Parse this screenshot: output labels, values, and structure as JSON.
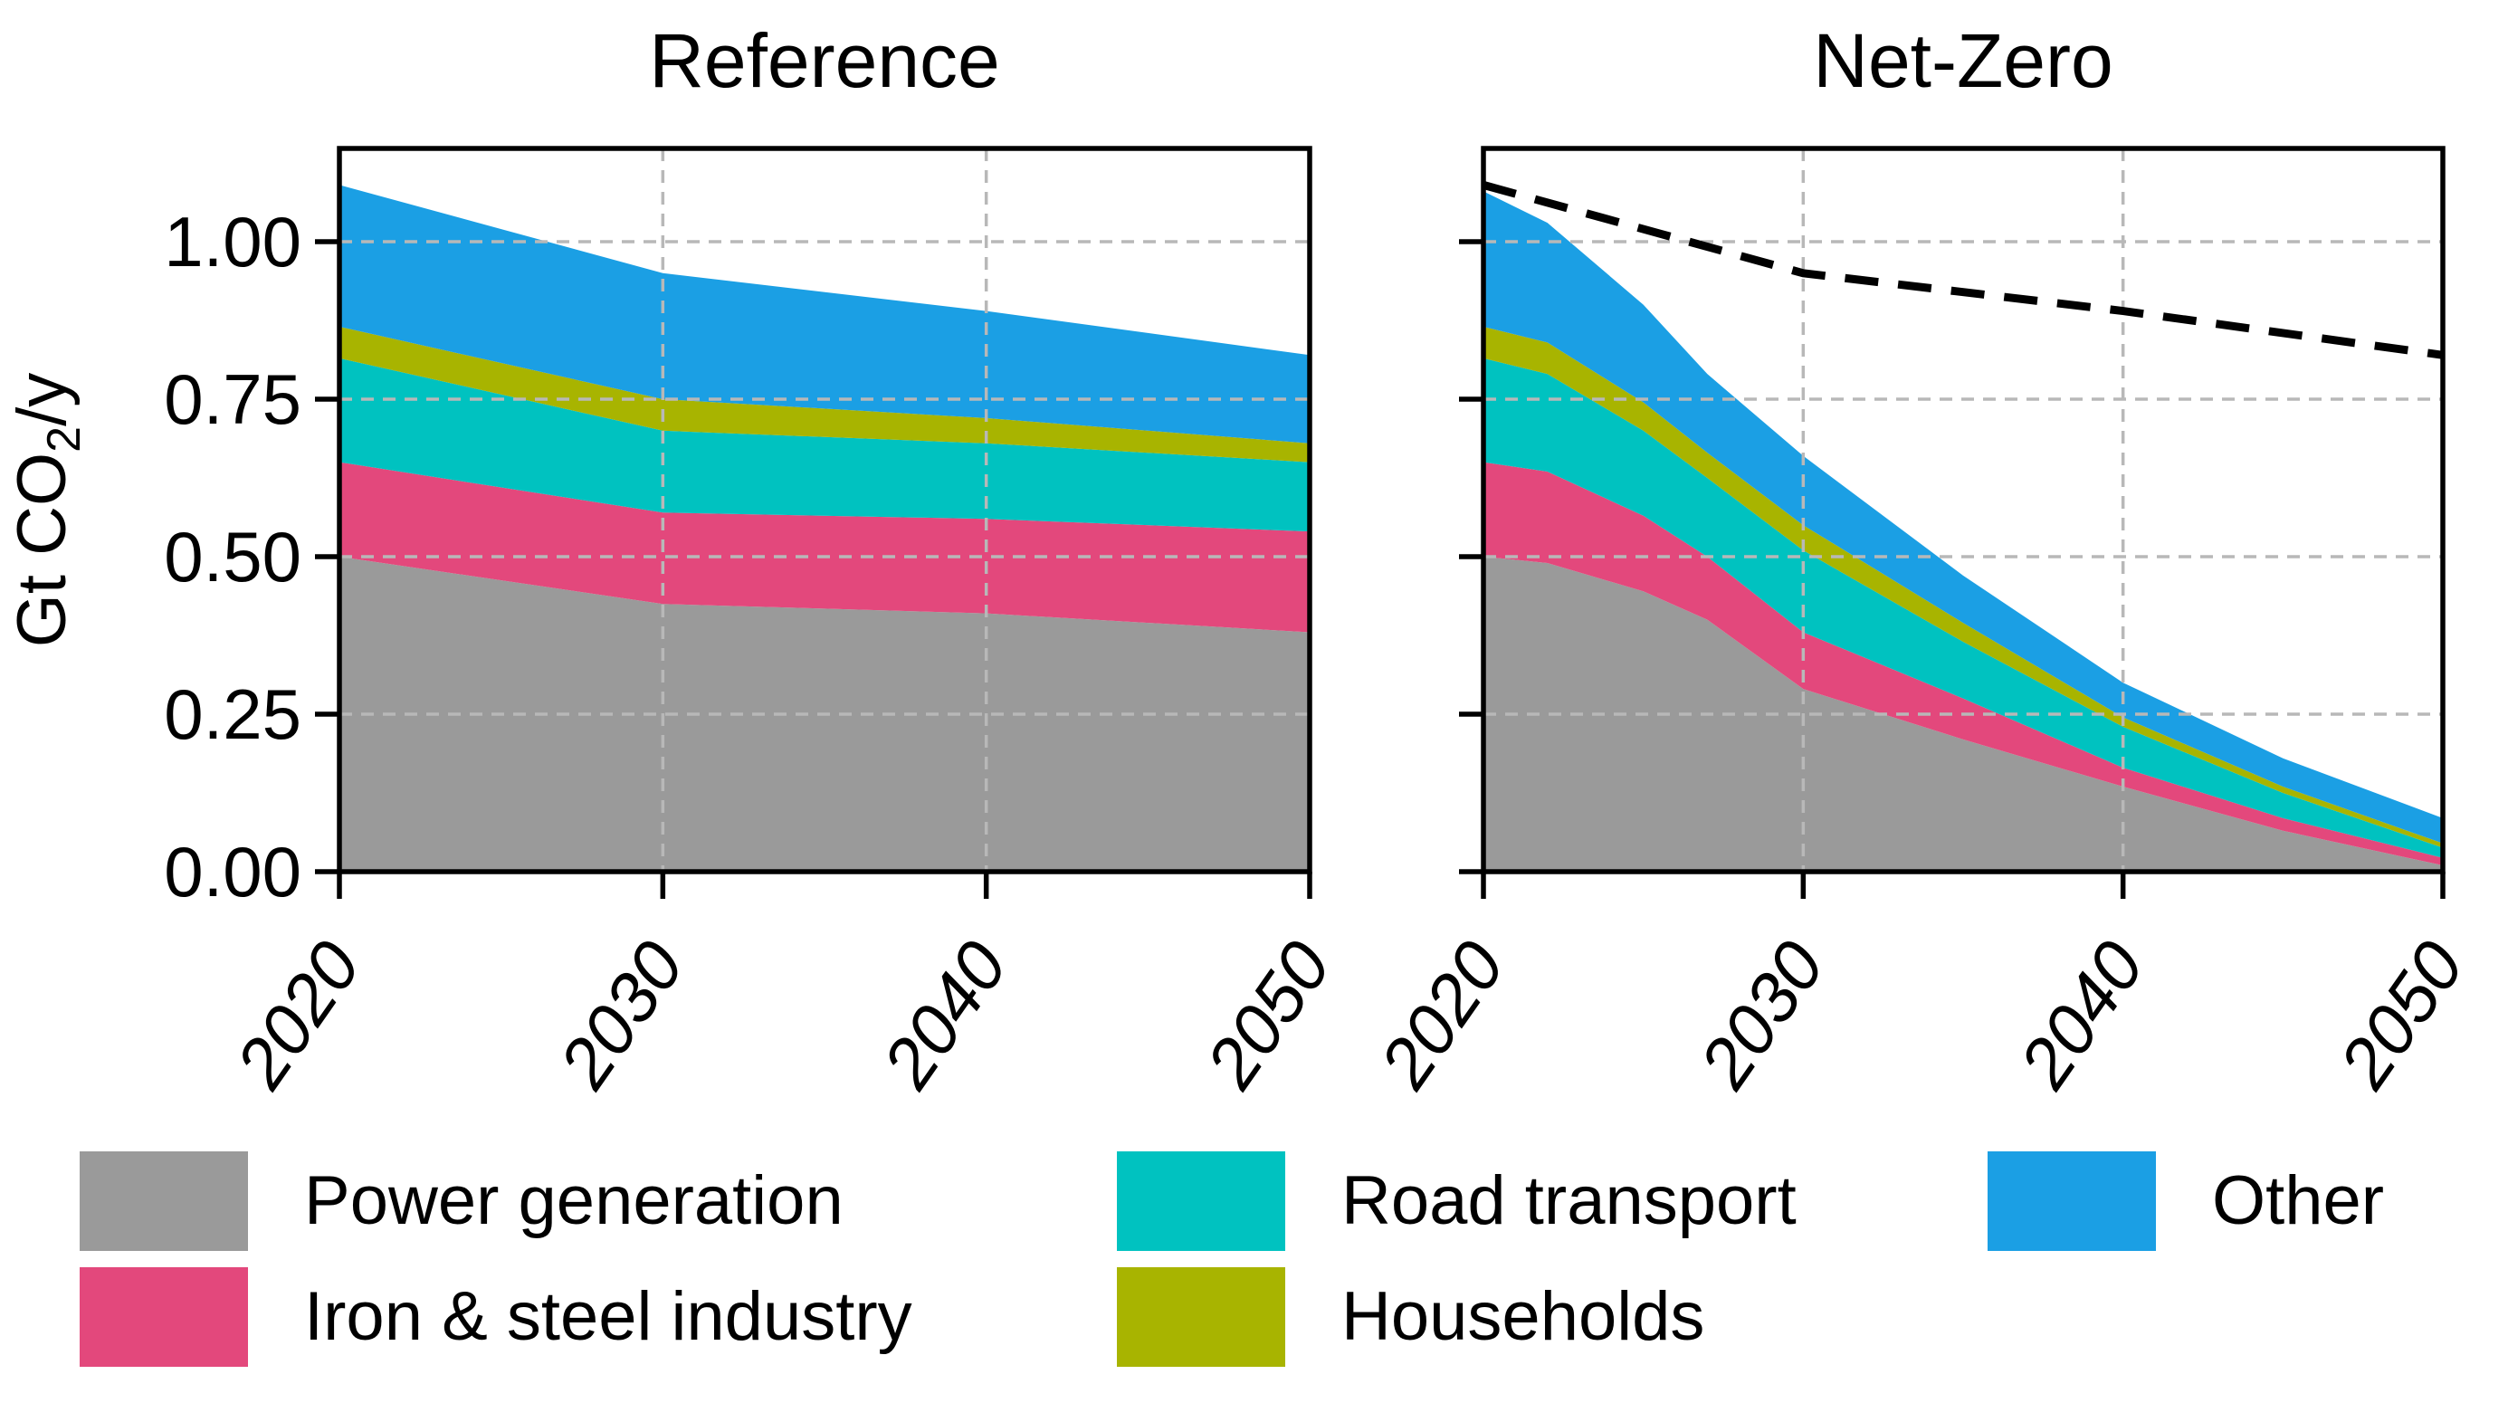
{
  "figure": {
    "ylabel_parts": {
      "prefix": "Gt CO",
      "sub": "2",
      "suffix": "/y"
    },
    "background": "#ffffff"
  },
  "colors": {
    "power": "#9a9a9a",
    "iron": "#e3487c",
    "road": "#00c2c0",
    "households": "#a8b400",
    "other": "#1b9fe4",
    "reference_line": "#000000",
    "grid": "#b8b8b8",
    "axis": "#000000",
    "text": "#000000"
  },
  "legend": {
    "items": [
      {
        "key": "power",
        "label": "Power generation",
        "row": 1,
        "col": 1
      },
      {
        "key": "iron",
        "label": "Iron & steel industry",
        "row": 2,
        "col": 1
      },
      {
        "key": "road",
        "label": "Road transport",
        "row": 1,
        "col": 2
      },
      {
        "key": "households",
        "label": "Households",
        "row": 2,
        "col": 2
      },
      {
        "key": "other",
        "label": "Other",
        "row": 1,
        "col": 3
      }
    ]
  },
  "chart_data": [
    {
      "type": "area",
      "stacked": true,
      "title": "Reference",
      "ylabel": "Gt CO2/y",
      "x": [
        2020,
        2030,
        2040,
        2050
      ],
      "series": [
        {
          "name": "Power generation",
          "key": "power",
          "values": [
            0.5,
            0.425,
            0.41,
            0.38
          ]
        },
        {
          "name": "Iron & steel industry",
          "key": "iron",
          "values": [
            0.15,
            0.145,
            0.15,
            0.16
          ]
        },
        {
          "name": "Road transport",
          "key": "road",
          "values": [
            0.165,
            0.13,
            0.12,
            0.11
          ]
        },
        {
          "name": "Households",
          "key": "households",
          "values": [
            0.05,
            0.05,
            0.04,
            0.03
          ]
        },
        {
          "name": "Other",
          "key": "other",
          "values": [
            0.225,
            0.2,
            0.17,
            0.14
          ]
        }
      ],
      "totals": [
        1.09,
        0.95,
        0.89,
        0.82
      ],
      "xticks": [
        2020,
        2030,
        2040,
        2050
      ],
      "yticks": [
        "0.00",
        "0.25",
        "0.50",
        "0.75",
        "1.00"
      ],
      "ylim": [
        0,
        1.148
      ],
      "xlim": [
        2020,
        2050
      ],
      "grid": true,
      "legend_position": "bottom"
    },
    {
      "type": "area",
      "stacked": true,
      "title": "Net-Zero",
      "ylabel": "Gt CO2/y",
      "x": [
        2020,
        2022,
        2025,
        2027,
        2030,
        2035,
        2040,
        2045,
        2050
      ],
      "series": [
        {
          "name": "Power generation",
          "key": "power",
          "values": [
            0.5,
            0.49,
            0.445,
            0.4,
            0.29,
            0.21,
            0.135,
            0.065,
            0.01
          ]
        },
        {
          "name": "Iron & steel industry",
          "key": "iron",
          "values": [
            0.15,
            0.145,
            0.12,
            0.1,
            0.09,
            0.065,
            0.03,
            0.02,
            0.012
          ]
        },
        {
          "name": "Road transport",
          "key": "road",
          "values": [
            0.165,
            0.155,
            0.135,
            0.125,
            0.13,
            0.09,
            0.065,
            0.04,
            0.016
          ]
        },
        {
          "name": "Households",
          "key": "households",
          "values": [
            0.05,
            0.05,
            0.045,
            0.04,
            0.04,
            0.03,
            0.015,
            0.01,
            0.007
          ]
        },
        {
          "name": "Other",
          "key": "other",
          "values": [
            0.215,
            0.19,
            0.155,
            0.125,
            0.11,
            0.075,
            0.055,
            0.045,
            0.04
          ]
        }
      ],
      "totals": [
        1.08,
        1.03,
        0.9,
        0.79,
        0.66,
        0.47,
        0.3,
        0.18,
        0.085
      ],
      "overlay_line": {
        "name": "Reference total",
        "style": "dashed",
        "x": [
          2020,
          2030,
          2040,
          2050
        ],
        "values": [
          1.09,
          0.95,
          0.89,
          0.82
        ]
      },
      "xticks": [
        2020,
        2030,
        2040,
        2050
      ],
      "yticks": [
        "0.00",
        "0.25",
        "0.50",
        "0.75",
        "1.00"
      ],
      "ylim": [
        0,
        1.148
      ],
      "xlim": [
        2020,
        2050
      ],
      "grid": true
    }
  ]
}
